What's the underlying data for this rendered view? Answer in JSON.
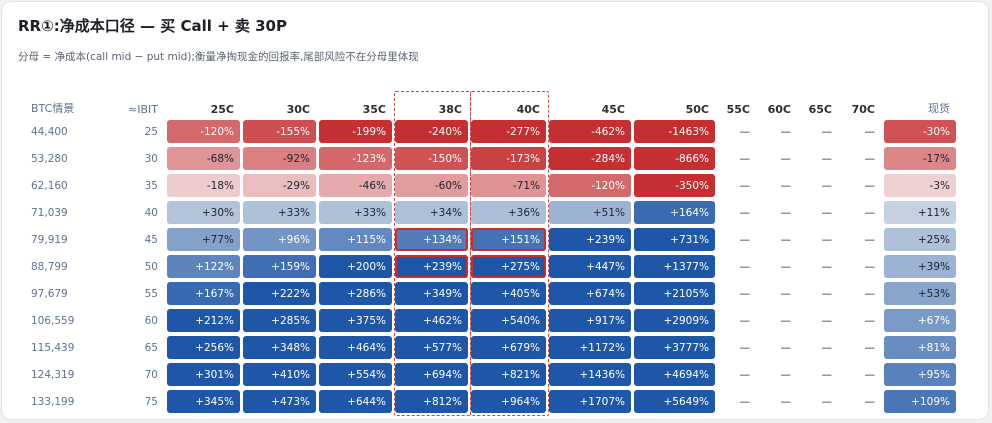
{
  "title": "RR①:净成本口径 — 买 Call + 卖 30P",
  "subtitle": "分母 = 净成本(call mid − put mid);衡量净掏现金的回报率,尾部风险不在分母里体现",
  "columns": {
    "btc": "BTC情景",
    "ibit": "≈IBIT",
    "strikes": [
      "25C",
      "30C",
      "35C",
      "38C",
      "40C",
      "45C",
      "50C",
      "55C",
      "60C",
      "65C",
      "70C"
    ],
    "spot": "现货"
  },
  "highlighted_columns": [
    "38C",
    "40C"
  ],
  "highlighted_row": [
    "79,919",
    "88,799"
  ],
  "rows": [
    {
      "btc": "44,400",
      "ibit": "25",
      "cells": [
        "-120%",
        "-155%",
        "-199%",
        "-240%",
        "-277%",
        "-462%",
        "-1463%",
        "—",
        "—",
        "—",
        "—"
      ],
      "spot": "-30%"
    },
    {
      "btc": "53,280",
      "ibit": "30",
      "cells": [
        "-68%",
        "-92%",
        "-123%",
        "-150%",
        "-173%",
        "-284%",
        "-866%",
        "—",
        "—",
        "—",
        "—"
      ],
      "spot": "-17%"
    },
    {
      "btc": "62,160",
      "ibit": "35",
      "cells": [
        "-18%",
        "-29%",
        "-46%",
        "-60%",
        "-71%",
        "-120%",
        "-350%",
        "—",
        "—",
        "—",
        "—"
      ],
      "spot": "-3%"
    },
    {
      "btc": "71,039",
      "ibit": "40",
      "cells": [
        "+30%",
        "+33%",
        "+33%",
        "+34%",
        "+36%",
        "+51%",
        "+164%",
        "—",
        "—",
        "—",
        "—"
      ],
      "spot": "+11%"
    },
    {
      "btc": "79,919",
      "ibit": "45",
      "cells": [
        "+77%",
        "+96%",
        "+115%",
        "+134%",
        "+151%",
        "+239%",
        "+731%",
        "—",
        "—",
        "—",
        "—"
      ],
      "spot": "+25%"
    },
    {
      "btc": "88,799",
      "ibit": "50",
      "cells": [
        "+122%",
        "+159%",
        "+200%",
        "+239%",
        "+275%",
        "+447%",
        "+1377%",
        "—",
        "—",
        "—",
        "—"
      ],
      "spot": "+39%"
    },
    {
      "btc": "97,679",
      "ibit": "55",
      "cells": [
        "+167%",
        "+222%",
        "+286%",
        "+349%",
        "+405%",
        "+674%",
        "+2105%",
        "—",
        "—",
        "—",
        "—"
      ],
      "spot": "+53%"
    },
    {
      "btc": "106,559",
      "ibit": "60",
      "cells": [
        "+212%",
        "+285%",
        "+375%",
        "+462%",
        "+540%",
        "+917%",
        "+2909%",
        "—",
        "—",
        "—",
        "—"
      ],
      "spot": "+67%"
    },
    {
      "btc": "115,439",
      "ibit": "65",
      "cells": [
        "+256%",
        "+348%",
        "+464%",
        "+577%",
        "+679%",
        "+1172%",
        "+3777%",
        "—",
        "—",
        "—",
        "—"
      ],
      "spot": "+81%"
    },
    {
      "btc": "124,319",
      "ibit": "70",
      "cells": [
        "+301%",
        "+410%",
        "+554%",
        "+694%",
        "+821%",
        "+1436%",
        "+4694%",
        "—",
        "—",
        "—",
        "—"
      ],
      "spot": "+95%"
    },
    {
      "btc": "133,199",
      "ibit": "75",
      "cells": [
        "+345%",
        "+473%",
        "+644%",
        "+812%",
        "+964%",
        "+1707%",
        "+5649%",
        "—",
        "—",
        "—",
        "—"
      ],
      "spot": "+109%"
    }
  ],
  "colors": {
    "negative": "#c62f32",
    "positive": "#1f57a8",
    "neutral": "#dce1e8"
  }
}
